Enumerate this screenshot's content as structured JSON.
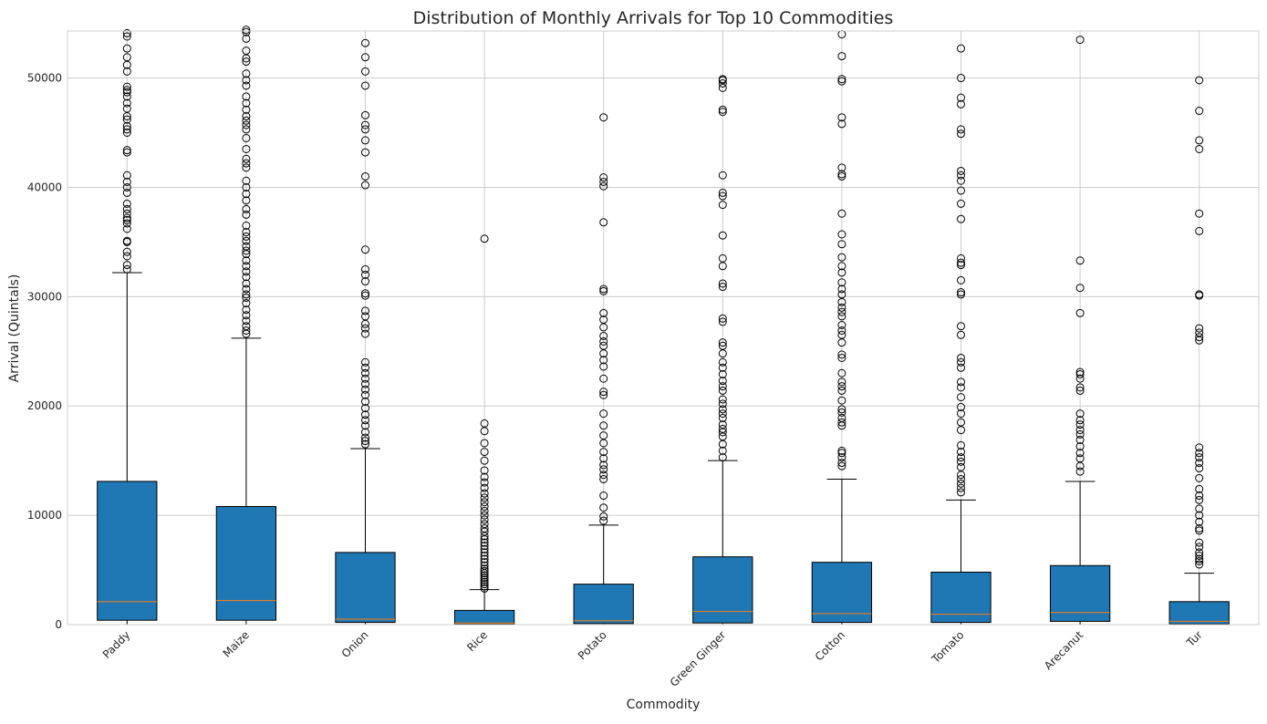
{
  "chart_data": {
    "type": "box",
    "title": "Distribution of Monthly Arrivals for Top 10 Commodities",
    "xlabel": "Commodity",
    "ylabel": "Arrival (Quintals)",
    "ylim": [
      0,
      54300
    ],
    "yticks": [
      0,
      10000,
      20000,
      30000,
      40000,
      50000
    ],
    "grid": true,
    "legend": "none",
    "colors": {
      "box_fill": "#1f77b4",
      "median": "#ff7f0e",
      "grid": "#cccccc",
      "edge": "#000000"
    },
    "categories": [
      "Paddy",
      "Maize",
      "Onion",
      "Rice",
      "Potato",
      "Green Ginger",
      "Cotton",
      "Tomato",
      "Arecanut",
      "Tur"
    ],
    "boxes": [
      {
        "category": "Paddy",
        "whisker_low": 0,
        "q1": 400,
        "median": 2100,
        "q3": 13100,
        "whisker_high": 32200,
        "outliers": [
          32500,
          32900,
          33700,
          34100,
          35000,
          35100,
          36200,
          36700,
          37000,
          37200,
          37600,
          38000,
          38500,
          39500,
          40000,
          40500,
          41100,
          43200,
          43400,
          45000,
          45300,
          45600,
          46200,
          46500,
          47200,
          47700,
          48300,
          48700,
          48900,
          49200,
          50600,
          51200,
          51900,
          52700,
          53800,
          54100
        ]
      },
      {
        "category": "Maize",
        "whisker_low": 0,
        "q1": 400,
        "median": 2200,
        "q3": 10800,
        "whisker_high": 26200,
        "outliers": [
          26600,
          26900,
          27300,
          27800,
          28300,
          28800,
          29400,
          29900,
          30200,
          30700,
          31200,
          31800,
          32300,
          32800,
          33300,
          33900,
          34200,
          34600,
          35100,
          35500,
          35900,
          36500,
          37500,
          38000,
          38800,
          39400,
          40000,
          40600,
          41800,
          42200,
          42600,
          43500,
          44500,
          45300,
          45700,
          46100,
          46500,
          47100,
          47700,
          48300,
          49300,
          49800,
          50400,
          51500,
          51800,
          52500,
          53600,
          54200,
          54400
        ]
      },
      {
        "category": "Onion",
        "whisker_low": 0,
        "q1": 200,
        "median": 500,
        "q3": 6600,
        "whisker_high": 16100,
        "outliers": [
          16500,
          16800,
          17100,
          17600,
          18200,
          18700,
          19200,
          19800,
          20400,
          21000,
          21500,
          22000,
          22500,
          23000,
          23500,
          24000,
          26600,
          27100,
          27500,
          28200,
          28700,
          30100,
          30300,
          31400,
          32000,
          32500,
          34300,
          40200,
          41000,
          43200,
          44300,
          45300,
          45700,
          46600,
          49300,
          50600,
          51900,
          53200
        ]
      },
      {
        "category": "Rice",
        "whisker_low": 0,
        "q1": 50,
        "median": 150,
        "q3": 1300,
        "whisker_high": 3200,
        "outliers": [
          3300,
          3500,
          3700,
          3900,
          4100,
          4300,
          4500,
          4700,
          4900,
          5100,
          5400,
          5700,
          6000,
          6300,
          6600,
          6900,
          7200,
          7500,
          7800,
          8100,
          8500,
          8800,
          9200,
          9600,
          10000,
          10400,
          10800,
          11200,
          11600,
          12000,
          12500,
          13000,
          13500,
          14100,
          15000,
          15800,
          16600,
          17700,
          18400,
          35300
        ]
      },
      {
        "category": "Potato",
        "whisker_low": 0,
        "q1": 100,
        "median": 350,
        "q3": 3700,
        "whisker_high": 9100,
        "outliers": [
          9500,
          9900,
          10700,
          11800,
          13300,
          13700,
          14200,
          14600,
          15200,
          15800,
          16600,
          17300,
          18200,
          19300,
          21000,
          21300,
          22500,
          23600,
          24200,
          24800,
          25500,
          25900,
          26400,
          27200,
          27900,
          28500,
          30500,
          30700,
          36800,
          40100,
          40500,
          40900,
          46400
        ]
      },
      {
        "category": "Green Ginger",
        "whisker_low": 0,
        "q1": 150,
        "median": 1200,
        "q3": 6200,
        "whisker_high": 15000,
        "outliers": [
          15300,
          15900,
          16500,
          17200,
          17600,
          17900,
          18300,
          18900,
          19300,
          19700,
          20200,
          20600,
          21400,
          21800,
          22300,
          22900,
          23500,
          24000,
          24800,
          25500,
          25800,
          27700,
          28000,
          30900,
          31200,
          32800,
          33500,
          35600,
          38400,
          39200,
          39500,
          41100,
          46900,
          47100,
          49100,
          49500,
          49800,
          49900
        ]
      },
      {
        "category": "Cotton",
        "whisker_low": 0,
        "q1": 200,
        "median": 1000,
        "q3": 5700,
        "whisker_high": 13300,
        "outliers": [
          14500,
          14800,
          15300,
          15700,
          15900,
          18200,
          18500,
          18900,
          19400,
          19700,
          20500,
          21400,
          21800,
          22200,
          23000,
          24400,
          24700,
          25800,
          26500,
          26900,
          27400,
          28200,
          28600,
          29000,
          29500,
          30200,
          30700,
          31300,
          32200,
          32800,
          33600,
          34800,
          35700,
          37600,
          41000,
          41200,
          41800,
          45800,
          46400,
          49700,
          49900,
          52000,
          54000
        ]
      },
      {
        "category": "Tomato",
        "whisker_low": 0,
        "q1": 200,
        "median": 950,
        "q3": 4800,
        "whisker_high": 11400,
        "outliers": [
          12100,
          12500,
          12900,
          13300,
          13700,
          14400,
          14900,
          15300,
          15800,
          16400,
          17800,
          18500,
          19300,
          19900,
          20800,
          21700,
          22200,
          23500,
          24000,
          24400,
          26500,
          27300,
          30200,
          30400,
          31500,
          32900,
          33100,
          33500,
          37100,
          38500,
          39700,
          40600,
          41100,
          41500,
          44900,
          45300,
          47600,
          48200,
          50000,
          52700
        ]
      },
      {
        "category": "Arecanut",
        "whisker_low": 0,
        "q1": 300,
        "median": 1100,
        "q3": 5400,
        "whisker_high": 13100,
        "outliers": [
          14000,
          14500,
          15200,
          15700,
          16300,
          16900,
          17400,
          17800,
          18300,
          18700,
          19300,
          21400,
          21700,
          22500,
          22900,
          23100,
          28500,
          30800,
          33300,
          53500
        ]
      },
      {
        "category": "Tur",
        "whisker_low": 0,
        "q1": 50,
        "median": 300,
        "q3": 2100,
        "whisker_high": 4700,
        "outliers": [
          5500,
          5800,
          6000,
          6300,
          6600,
          7100,
          7500,
          8600,
          8800,
          9400,
          10000,
          10600,
          11400,
          11800,
          12400,
          13400,
          14300,
          14800,
          15300,
          15700,
          16200,
          26000,
          26300,
          26700,
          27100,
          30100,
          30200,
          36000,
          37600,
          43500,
          44300,
          47000,
          49800
        ]
      }
    ]
  }
}
